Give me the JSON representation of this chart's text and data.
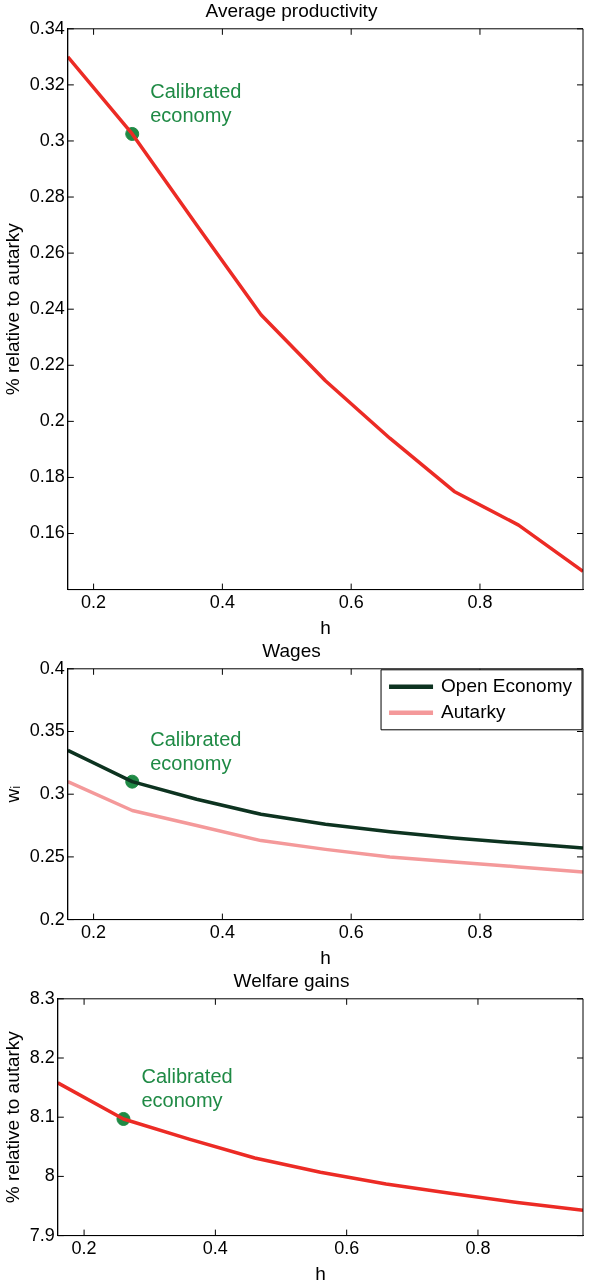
{
  "chart_data": [
    {
      "type": "line",
      "title": "Average productivity",
      "xlabel": "h",
      "ylabel": "% relative to autarky",
      "x": [
        0.16,
        0.26,
        0.36,
        0.46,
        0.56,
        0.66,
        0.76,
        0.86,
        0.96
      ],
      "xlim": [
        0.16,
        0.96
      ],
      "xticks": [
        0.2,
        0.4,
        0.6,
        0.8
      ],
      "ylim": [
        0.14,
        0.34
      ],
      "yticks": [
        0.16,
        0.18,
        0.2,
        0.22,
        0.24,
        0.26,
        0.28,
        0.3,
        0.32,
        0.34
      ],
      "grid": false,
      "legend": false,
      "series": [
        {
          "color": "#ec2b25",
          "values": [
            0.33,
            0.3025,
            0.27,
            0.238,
            0.2145,
            0.194,
            0.175,
            0.163,
            0.1465
          ]
        },
        {
          "type": "scatter",
          "color": "#1f8a45",
          "values": [
            null,
            0.3025,
            null,
            null,
            null,
            null,
            null,
            null,
            null
          ]
        }
      ],
      "annotations": [
        "Calibrated economy"
      ]
    },
    {
      "type": "line",
      "title": "Wages",
      "xlabel": "h",
      "ylabel": "wᵢ",
      "x": [
        0.16,
        0.26,
        0.36,
        0.46,
        0.56,
        0.66,
        0.76,
        0.86,
        0.96
      ],
      "xlim": [
        0.16,
        0.96
      ],
      "xticks": [
        0.2,
        0.4,
        0.6,
        0.8
      ],
      "ylim": [
        0.2,
        0.4
      ],
      "yticks": [
        0.2,
        0.25,
        0.3,
        0.35,
        0.4
      ],
      "grid": false,
      "legend": "top right",
      "series": [
        {
          "name": "Open Economy",
          "color": "#0d3320",
          "values": [
            0.335,
            0.31,
            0.296,
            0.284,
            0.276,
            0.27,
            0.265,
            0.261,
            0.257
          ]
        },
        {
          "name": "Autarky",
          "color": "#f4999a",
          "values": [
            0.31,
            0.287,
            0.275,
            0.263,
            0.256,
            0.25,
            0.246,
            0.242,
            0.238
          ]
        },
        {
          "type": "scatter",
          "color": "#1f8a45",
          "values": [
            null,
            0.31,
            null,
            null,
            null,
            null,
            null,
            null,
            null
          ]
        }
      ],
      "annotations": [
        "Calibrated economy"
      ]
    },
    {
      "type": "line",
      "title": "Welfare gains",
      "xlabel": "h",
      "ylabel": "% relative to autarky",
      "x": [
        0.16,
        0.26,
        0.36,
        0.46,
        0.56,
        0.66,
        0.76,
        0.86,
        0.96
      ],
      "xlim": [
        0.16,
        0.96
      ],
      "xticks": [
        0.2,
        0.4,
        0.6,
        0.8
      ],
      "ylim": [
        7.9,
        8.3
      ],
      "yticks": [
        7.9,
        8,
        8.1,
        8.2,
        8.3
      ],
      "grid": false,
      "legend": false,
      "series": [
        {
          "color": "#ec2b25",
          "values": [
            8.158,
            8.097,
            8.063,
            8.031,
            8.007,
            7.987,
            7.971,
            7.956,
            7.943
          ]
        },
        {
          "type": "scatter",
          "color": "#1f8a45",
          "values": [
            null,
            8.097,
            null,
            null,
            null,
            null,
            null,
            null,
            null
          ]
        }
      ],
      "annotations": [
        "Calibrated economy"
      ]
    }
  ]
}
